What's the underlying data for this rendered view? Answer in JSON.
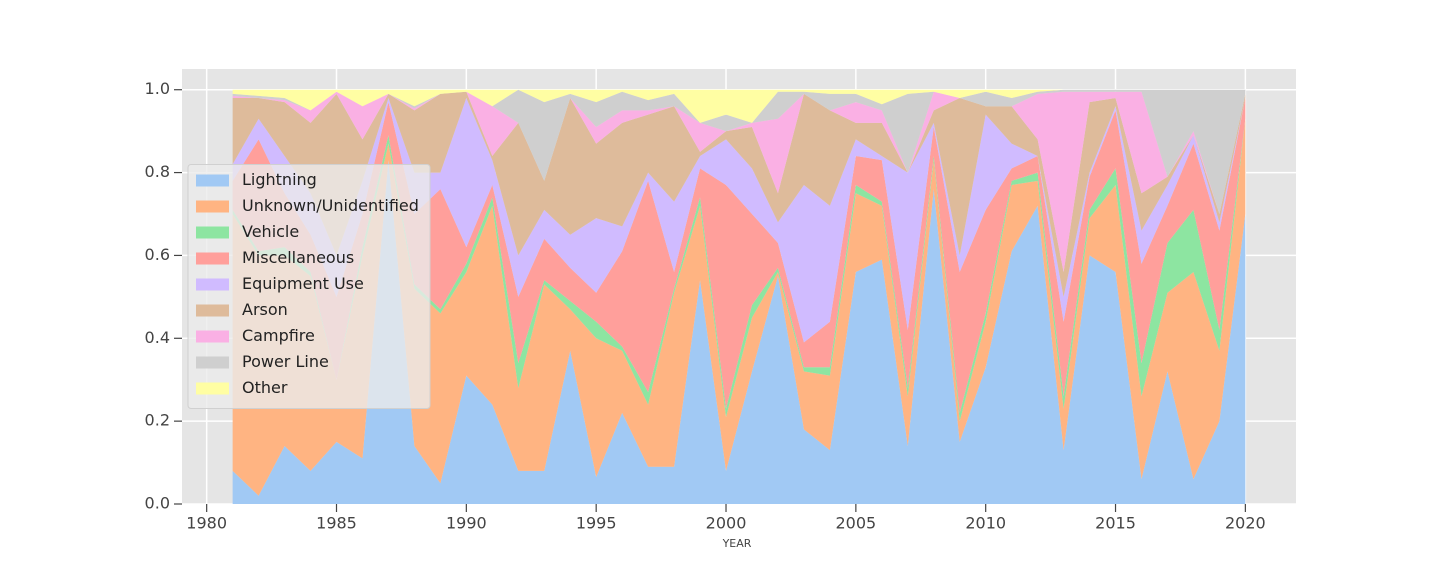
{
  "chart_data": {
    "type": "stacked-area",
    "x_label": "YEAR",
    "x": [
      1981,
      1982,
      1983,
      1984,
      1985,
      1986,
      1987,
      1988,
      1989,
      1990,
      1991,
      1992,
      1993,
      1994,
      1995,
      1996,
      1997,
      1998,
      1999,
      2000,
      2001,
      2002,
      2003,
      2004,
      2005,
      2006,
      2007,
      2008,
      2009,
      2010,
      2011,
      2012,
      2013,
      2014,
      2015,
      2016,
      2017,
      2018,
      2019,
      2020
    ],
    "xlim": [
      1979.05,
      2021.95
    ],
    "xticks": [
      1980,
      1985,
      1990,
      1995,
      2000,
      2005,
      2010,
      2015,
      2020
    ],
    "ylim": [
      0,
      1.05
    ],
    "yticks": [
      {
        "value": 0,
        "label": "0.0"
      },
      {
        "value": 0.2,
        "label": "0.2"
      },
      {
        "value": 0.4,
        "label": "0.4"
      },
      {
        "value": 0.6,
        "label": "0.6"
      },
      {
        "value": 0.8,
        "label": "0.8"
      },
      {
        "value": 1,
        "label": "1.0"
      }
    ],
    "grid": true,
    "legend": "center left",
    "series": [
      {
        "name": "Lightning",
        "color": "#a1c9f4",
        "values": [
          0.08,
          0.02,
          0.14,
          0.08,
          0.15,
          0.11,
          0.83,
          0.14,
          0.05,
          0.31,
          0.24,
          0.08,
          0.08,
          0.37,
          0.065,
          0.22,
          0.09,
          0.09,
          0.54,
          0.08,
          0.32,
          0.55,
          0.18,
          0.13,
          0.56,
          0.59,
          0.14,
          0.76,
          0.15,
          0.33,
          0.61,
          0.72,
          0.13,
          0.6,
          0.56,
          0.06,
          0.32,
          0.06,
          0.2,
          0.7
        ]
      },
      {
        "name": "Unknown/Unidentified",
        "color": "#ffb482",
        "values": [
          0.62,
          0.58,
          0.46,
          0.47,
          0.15,
          0.49,
          0.04,
          0.38,
          0.41,
          0.25,
          0.48,
          0.2,
          0.45,
          0.1,
          0.335,
          0.15,
          0.15,
          0.42,
          0.18,
          0.13,
          0.13,
          0.01,
          0.14,
          0.18,
          0.19,
          0.13,
          0.12,
          0.07,
          0.05,
          0.11,
          0.16,
          0.06,
          0.1,
          0.09,
          0.21,
          0.2,
          0.19,
          0.5,
          0.17,
          0.23
        ]
      },
      {
        "name": "Vehicle",
        "color": "#8de5a1",
        "values": [
          0.01,
          0.01,
          0.02,
          0.01,
          0,
          0.02,
          0.02,
          0.01,
          0.01,
          0.02,
          0.02,
          0.06,
          0.01,
          0.02,
          0.04,
          0.01,
          0.03,
          0.01,
          0.02,
          0.02,
          0.03,
          0.01,
          0.01,
          0.02,
          0.02,
          0.01,
          0.02,
          0.01,
          0.02,
          0.02,
          0.01,
          0.02,
          0.03,
          0.02,
          0.04,
          0.08,
          0.12,
          0.15,
          0.05,
          0
        ]
      },
      {
        "name": "Miscellaneous",
        "color": "#ff9f9b",
        "values": [
          0.07,
          0.27,
          0.13,
          0.09,
          0.2,
          0.08,
          0.08,
          0.17,
          0.29,
          0.04,
          0.03,
          0.16,
          0.1,
          0.08,
          0.07,
          0.23,
          0.51,
          0.04,
          0.07,
          0.54,
          0.22,
          0.06,
          0.06,
          0.11,
          0.07,
          0.1,
          0.14,
          0.07,
          0.34,
          0.25,
          0.03,
          0.04,
          0.18,
          0.08,
          0.14,
          0.24,
          0.09,
          0.16,
          0.24,
          0.05
        ]
      },
      {
        "name": "Equipment Use",
        "color": "#d0bbff",
        "values": [
          0.04,
          0.05,
          0.09,
          0.1,
          0.1,
          0.08,
          0.01,
          0.1,
          0.04,
          0.36,
          0.06,
          0.1,
          0.07,
          0.08,
          0.18,
          0.06,
          0.02,
          0.17,
          0.03,
          0.11,
          0.11,
          0.05,
          0.38,
          0.28,
          0.04,
          0.01,
          0.38,
          0.01,
          0.04,
          0.23,
          0.06,
          0,
          0.06,
          0.01,
          0.01,
          0.08,
          0.05,
          0.02,
          0.02,
          0
        ]
      },
      {
        "name": "Arson",
        "color": "#debb9b",
        "values": [
          0.16,
          0.05,
          0.13,
          0.17,
          0.39,
          0.1,
          0.01,
          0.15,
          0.19,
          0.015,
          0.01,
          0.32,
          0.07,
          0.33,
          0.18,
          0.25,
          0.14,
          0.23,
          0.01,
          0.02,
          0.1,
          0.07,
          0.22,
          0.23,
          0.04,
          0.08,
          0,
          0.03,
          0.38,
          0.02,
          0.09,
          0.04,
          0.06,
          0.17,
          0.02,
          0.09,
          0.02,
          0,
          0.02,
          0.01
        ]
      },
      {
        "name": "Campfire",
        "color": "#fab0e4",
        "values": [
          0.005,
          0,
          0.005,
          0.03,
          0.005,
          0.08,
          0,
          0.005,
          0,
          0,
          0.12,
          0,
          0,
          0,
          0.04,
          0.03,
          0.01,
          0,
          0.07,
          0,
          0.01,
          0.18,
          0,
          0,
          0.05,
          0.03,
          0,
          0.045,
          0,
          0,
          0,
          0.11,
          0.435,
          0.025,
          0.015,
          0.245,
          0,
          0.01,
          0,
          0
        ]
      },
      {
        "name": "Power Line",
        "color": "#cfcfcf",
        "values": [
          0.005,
          0.005,
          0.005,
          0,
          0,
          0,
          0,
          0.005,
          0,
          0,
          0,
          0.08,
          0.19,
          0.01,
          0.06,
          0.045,
          0.025,
          0.03,
          0,
          0.04,
          0,
          0.065,
          0.005,
          0.04,
          0.02,
          0.015,
          0.19,
          0,
          0,
          0.035,
          0.02,
          0.005,
          0.005,
          0.005,
          0.005,
          0.005,
          0.21,
          0.1,
          0.3,
          0.01
        ]
      },
      {
        "name": "Other",
        "color": "#fffea3",
        "values": [
          0.01,
          0.015,
          0.02,
          0.05,
          0.005,
          0.04,
          0.01,
          0.04,
          0.01,
          0.005,
          0.04,
          0,
          0.03,
          0.01,
          0.03,
          0.005,
          0.025,
          0.01,
          0.08,
          0.06,
          0.08,
          0.005,
          0.005,
          0.01,
          0.01,
          0.035,
          0.01,
          0.005,
          0.02,
          0.005,
          0.02,
          0.005,
          0,
          0,
          0,
          0,
          0,
          0,
          0,
          0
        ]
      }
    ]
  }
}
